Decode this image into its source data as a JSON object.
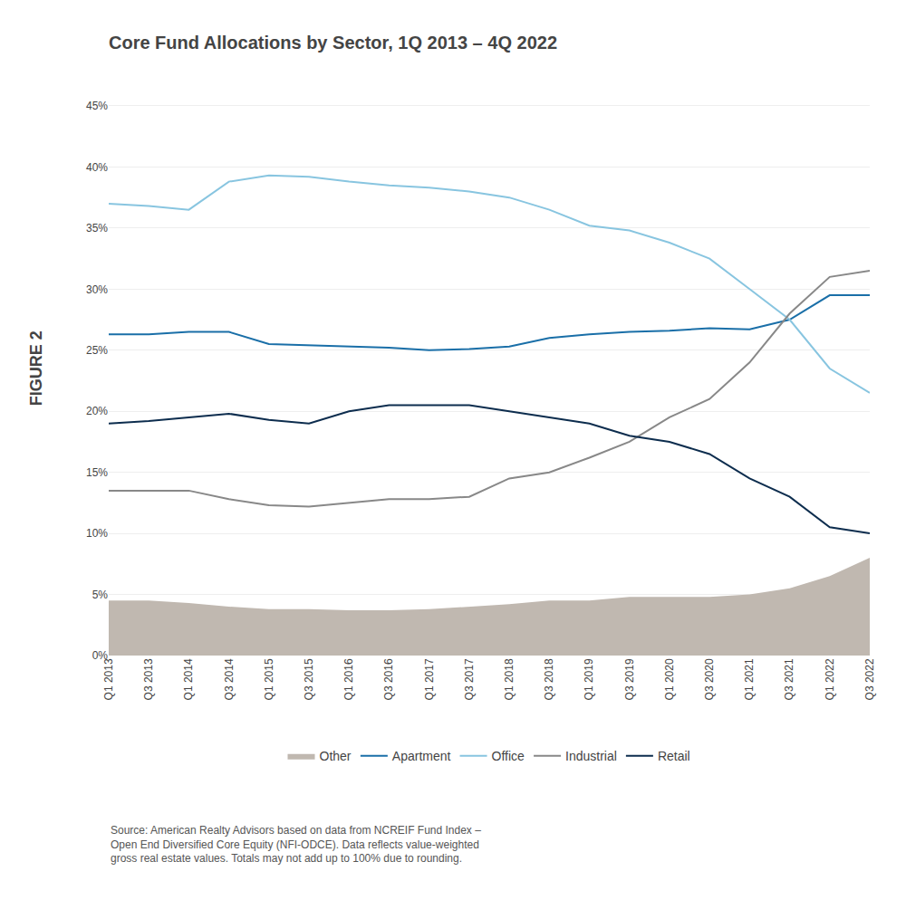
{
  "chart_data": {
    "type": "line",
    "title": "Core Fund Allocations by Sector, 1Q 2013 – 4Q 2022",
    "annotations": [
      "FIGURE 2",
      "Source: American Realty Advisors based on data from NCREIF Fund Index –\nOpen End Diversified Core Equity (NFI-ODCE). Data reflects value-weighted\ngross real estate values. Totals may not add up to 100% due to rounding."
    ],
    "categories": [
      "Q1 2013",
      "Q3 2013",
      "Q1 2014",
      "Q3 2014",
      "Q1 2015",
      "Q3 2015",
      "Q1 2016",
      "Q3 2016",
      "Q1 2017",
      "Q3 2017",
      "Q1 2018",
      "Q3 2018",
      "Q1 2019",
      "Q3 2019",
      "Q1 2020",
      "Q3 2020",
      "Q1 2021",
      "Q3 2021",
      "Q1 2022",
      "Q3 2022"
    ],
    "series": [
      {
        "name": "Other",
        "type": "area",
        "color": "#c0b8b0",
        "values": [
          4.5,
          4.5,
          4.3,
          4.0,
          3.8,
          3.8,
          3.7,
          3.7,
          3.8,
          4.0,
          4.2,
          4.5,
          4.5,
          4.8,
          4.8,
          4.8,
          5.0,
          5.5,
          6.5,
          8.0
        ]
      },
      {
        "name": "Apartment",
        "type": "line",
        "color": "#1a6fa8",
        "values": [
          26.3,
          26.3,
          26.5,
          26.5,
          25.5,
          25.4,
          25.3,
          25.2,
          25.0,
          25.1,
          25.3,
          26.0,
          26.3,
          26.5,
          26.6,
          26.8,
          26.7,
          27.5,
          29.5,
          29.5
        ]
      },
      {
        "name": "Office",
        "type": "line",
        "color": "#88c5e0",
        "values": [
          37.0,
          36.8,
          36.5,
          38.8,
          39.3,
          39.2,
          38.8,
          38.5,
          38.3,
          38.0,
          37.5,
          36.5,
          35.2,
          34.8,
          33.8,
          32.5,
          30.0,
          27.5,
          23.5,
          21.5
        ]
      },
      {
        "name": "Industrial",
        "type": "line",
        "color": "#888888",
        "values": [
          13.5,
          13.5,
          13.5,
          12.8,
          12.3,
          12.2,
          12.5,
          12.8,
          12.8,
          13.0,
          14.5,
          15.0,
          16.2,
          17.5,
          19.5,
          21.0,
          24.0,
          28.0,
          31.0,
          31.5
        ]
      },
      {
        "name": "Retail",
        "type": "line",
        "color": "#0d2d4e",
        "values": [
          19.0,
          19.2,
          19.5,
          19.8,
          19.3,
          19.0,
          20.0,
          20.5,
          20.5,
          20.5,
          20.0,
          19.5,
          19.0,
          18.0,
          17.5,
          16.5,
          14.5,
          13.0,
          10.5,
          10.0
        ]
      }
    ],
    "ylim": [
      0,
      47
    ],
    "yticks": [
      {
        "value": 0,
        "label": "0%"
      },
      {
        "value": 5,
        "label": "5%"
      },
      {
        "value": 10,
        "label": "10%"
      },
      {
        "value": 15,
        "label": "15%"
      },
      {
        "value": 20,
        "label": "20%"
      },
      {
        "value": 25,
        "label": "25%"
      },
      {
        "value": 30,
        "label": "30%"
      },
      {
        "value": 35,
        "label": "35%"
      },
      {
        "value": 40,
        "label": "40%"
      },
      {
        "value": 45,
        "label": "45%"
      }
    ],
    "grid": true,
    "legend": "bottom"
  }
}
